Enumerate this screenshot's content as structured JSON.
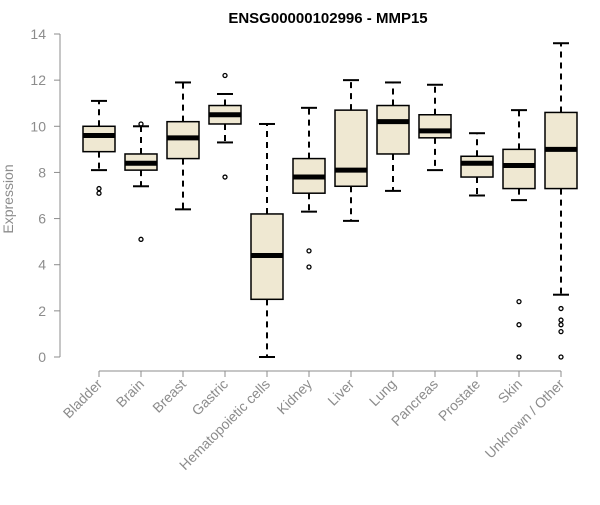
{
  "chart_data": {
    "type": "box",
    "title": "ENSG00000102996 - MMP15",
    "xlabel": "",
    "ylabel": "Expression",
    "ylim": [
      0,
      14
    ],
    "yticks": [
      0,
      2,
      4,
      6,
      8,
      10,
      12,
      14
    ],
    "grid": false,
    "box_fill": "#efe8d2",
    "median_color": "#000000",
    "categories": [
      "Bladder",
      "Brain",
      "Breast",
      "Gastric",
      "Hematopoietic cells",
      "Kidney",
      "Liver",
      "Lung",
      "Pancreas",
      "Prostate",
      "Skin",
      "Unknown / Other"
    ],
    "boxes": [
      {
        "whisker_low": 8.1,
        "q1": 8.9,
        "median": 9.6,
        "q3": 10.0,
        "whisker_high": 11.1,
        "outliers": [
          7.1,
          7.3
        ]
      },
      {
        "whisker_low": 7.4,
        "q1": 8.1,
        "median": 8.4,
        "q3": 8.8,
        "whisker_high": 10.0,
        "outliers": [
          10.1,
          5.1
        ]
      },
      {
        "whisker_low": 6.4,
        "q1": 8.6,
        "median": 9.5,
        "q3": 10.2,
        "whisker_high": 11.9,
        "outliers": []
      },
      {
        "whisker_low": 9.3,
        "q1": 10.1,
        "median": 10.5,
        "q3": 10.9,
        "whisker_high": 11.4,
        "outliers": [
          12.2,
          7.8
        ]
      },
      {
        "whisker_low": 0.0,
        "q1": 2.5,
        "median": 4.4,
        "q3": 6.2,
        "whisker_high": 10.1,
        "outliers": []
      },
      {
        "whisker_low": 6.3,
        "q1": 7.1,
        "median": 7.8,
        "q3": 8.6,
        "whisker_high": 10.8,
        "outliers": [
          4.6,
          3.9
        ]
      },
      {
        "whisker_low": 5.9,
        "q1": 7.4,
        "median": 8.1,
        "q3": 10.7,
        "whisker_high": 12.0,
        "outliers": []
      },
      {
        "whisker_low": 7.2,
        "q1": 8.8,
        "median": 10.2,
        "q3": 10.9,
        "whisker_high": 11.9,
        "outliers": []
      },
      {
        "whisker_low": 8.1,
        "q1": 9.5,
        "median": 9.8,
        "q3": 10.5,
        "whisker_high": 11.8,
        "outliers": []
      },
      {
        "whisker_low": 7.0,
        "q1": 7.8,
        "median": 8.4,
        "q3": 8.7,
        "whisker_high": 9.7,
        "outliers": []
      },
      {
        "whisker_low": 6.8,
        "q1": 7.3,
        "median": 8.3,
        "q3": 9.0,
        "whisker_high": 10.7,
        "outliers": [
          2.4,
          1.4,
          0.0
        ]
      },
      {
        "whisker_low": 2.7,
        "q1": 7.3,
        "median": 9.0,
        "q3": 10.6,
        "whisker_high": 13.6,
        "outliers": [
          2.1,
          1.6,
          1.4,
          1.1,
          0.0
        ]
      }
    ]
  }
}
